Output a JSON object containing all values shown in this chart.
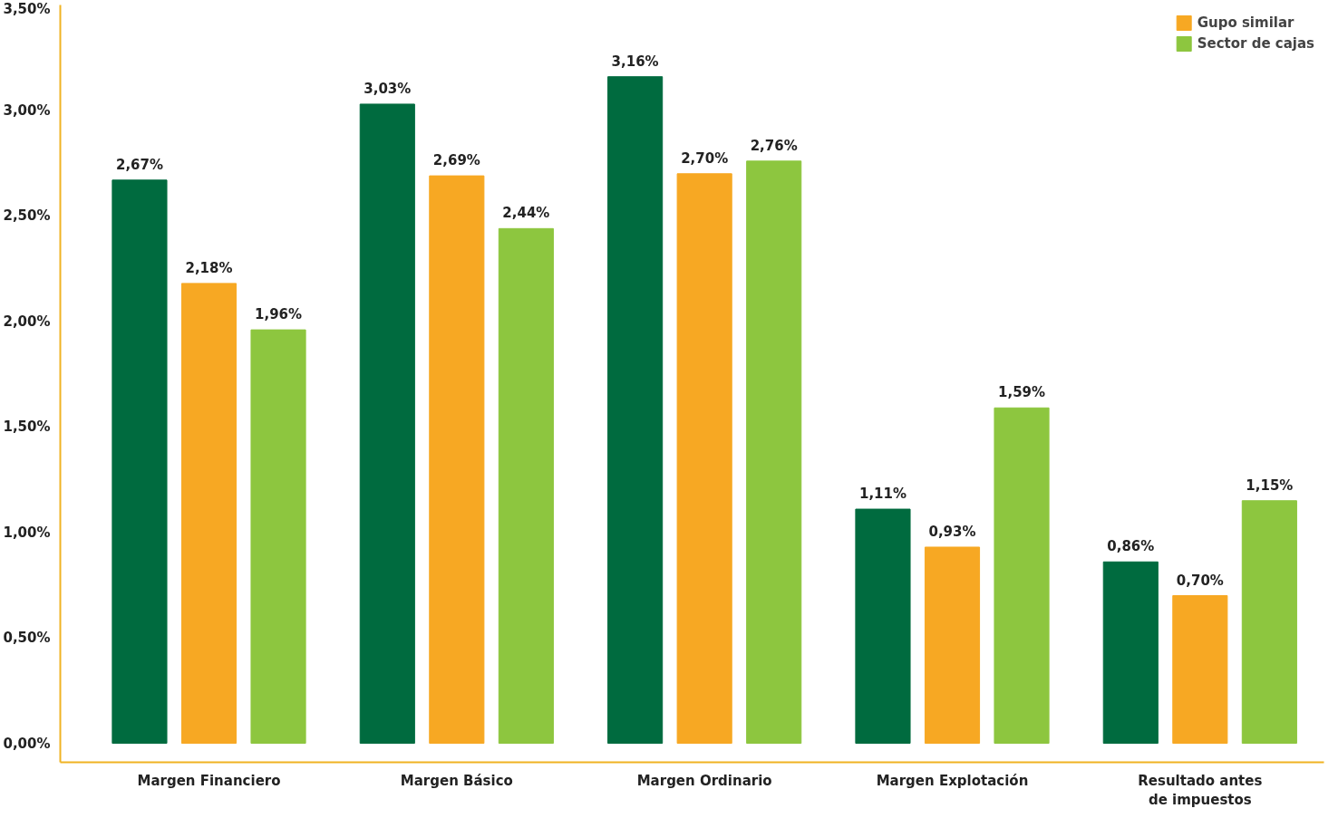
{
  "chart_data": {
    "type": "bar",
    "categories": [
      "Margen Financiero",
      "Margen Básico",
      "Margen Ordinario",
      "Margen Explotación",
      "Resultado antes de impuestos"
    ],
    "series": [
      {
        "color": "#006b3f",
        "values": [
          2.67,
          3.03,
          3.16,
          1.11,
          0.86
        ],
        "value_labels": [
          "2,67%",
          "3,03%",
          "3,16%",
          "1,11%",
          "0,86%"
        ]
      },
      {
        "name": "Gupo similar",
        "color": "#f7a823",
        "values": [
          2.18,
          2.69,
          2.7,
          0.93,
          0.7
        ],
        "value_labels": [
          "2,18%",
          "2,69%",
          "2,70%",
          "0,93%",
          "0,70%"
        ]
      },
      {
        "name": "Sector de cajas",
        "color": "#8dc63f",
        "values": [
          1.96,
          2.44,
          2.76,
          1.59,
          1.15
        ],
        "value_labels": [
          "1,96%",
          "2,44%",
          "2,76%",
          "1,59%",
          "1,15%"
        ]
      }
    ],
    "ylim": [
      -0.09,
      3.5
    ],
    "yticks": [
      {
        "value": 0,
        "label": "0,00%"
      },
      {
        "value": 0.5,
        "label": "0,50%"
      },
      {
        "value": 1,
        "label": "1,00%"
      },
      {
        "value": 1.5,
        "label": "1,50%"
      },
      {
        "value": 2,
        "label": "2,00%"
      },
      {
        "value": 2.5,
        "label": "2,50%"
      },
      {
        "value": 3,
        "label": "3,00%"
      },
      {
        "value": 3.5,
        "label": "3,50%"
      }
    ],
    "grid": false,
    "legend": "top right"
  }
}
